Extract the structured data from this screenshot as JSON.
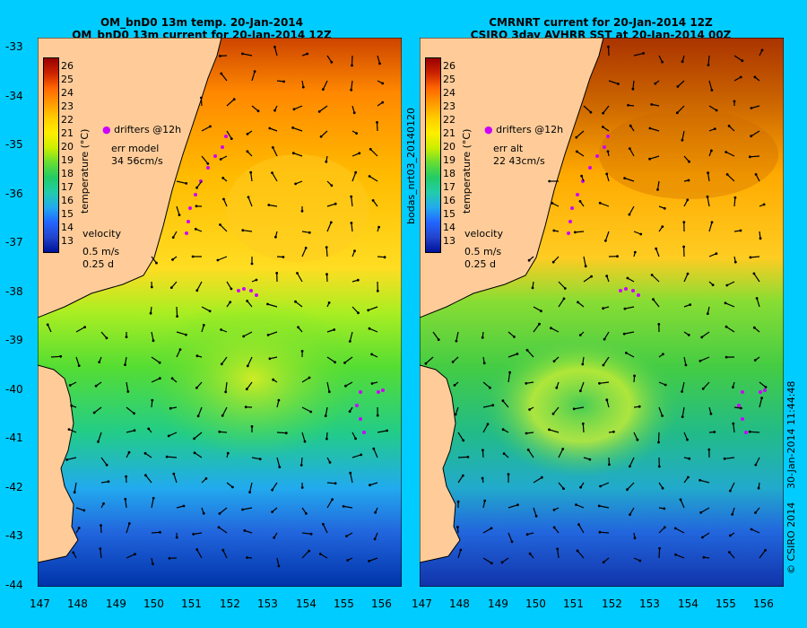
{
  "left_panel": {
    "title_line1": "OM_bnD0 13m temp. 20-Jan-2014",
    "title_line2": "OM_bnD0 13m current for 20-Jan-2014 12Z",
    "legend_drifters": "drifters @12h",
    "err_label": "err model",
    "err_value": "34 56cm/s",
    "velocity_label": "velocity",
    "velocity_scale": "0.5 m/s",
    "velocity_days": "0.25 d"
  },
  "right_panel": {
    "title_line1": "CMRNRT current for 20-Jan-2014 12Z",
    "title_line2": "CSIRO 3day AVHRR SST at 20-Jan-2014 00Z",
    "legend_drifters": "drifters @12h",
    "err_label": "err alt",
    "err_value": "22 43cm/s",
    "velocity_label": "velocity",
    "velocity_scale": "0.5 m/s",
    "velocity_days": "0.25 d"
  },
  "colorbar": {
    "title": "temperature (°C)",
    "labels": [
      "26",
      "25",
      "24",
      "23",
      "22",
      "21",
      "20",
      "19",
      "18",
      "17",
      "16",
      "15",
      "14",
      "13"
    ]
  },
  "axes": {
    "lon_labels": [
      "147",
      "148",
      "149",
      "150",
      "151",
      "152",
      "153",
      "154",
      "155",
      "156"
    ],
    "lat_labels": [
      "-33",
      "-34",
      "-35",
      "-36",
      "-37",
      "-38",
      "-39",
      "-40",
      "-41",
      "-42",
      "-43",
      "-44"
    ]
  },
  "side_text": {
    "run_id": "bodas_nrt03_20140120",
    "timestamp": "30-Jan-2014 11:44:48",
    "copyright": "© CSIRO 2014"
  },
  "colors": {
    "background": "#00ccff",
    "land": "#ffcc99",
    "drifters": "#cc00ff"
  }
}
